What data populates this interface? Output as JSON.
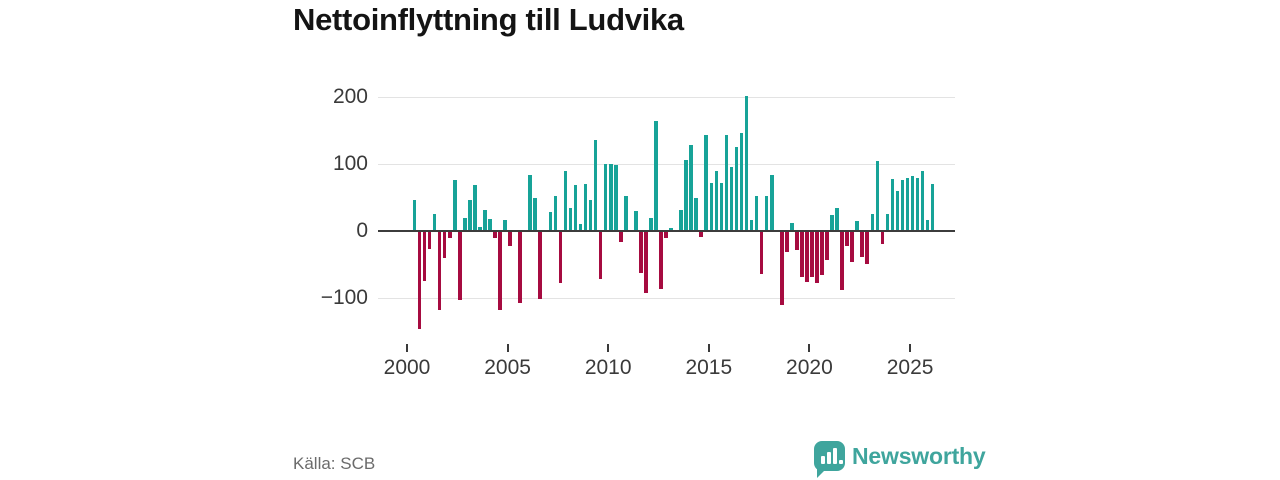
{
  "title": "Nettoinflyttning till Ludvika",
  "source": "Källa: SCB",
  "branding": {
    "name": "Newsworthy",
    "icon": "newsworthy-speech-bubble-barchart-icon"
  },
  "colors": {
    "positive_bar": "#17a398",
    "negative_bar": "#a60b40",
    "zero_axis": "#3c3c3c",
    "gridline": "#e3e3e3",
    "axis_text": "#3a3a3a",
    "title_text": "#141414",
    "source_text": "#6b6b6b",
    "brand_teal": "#3fa59d"
  },
  "chart_data": {
    "type": "bar",
    "title": "Nettoinflyttning till Ludvika",
    "xlabel": "",
    "ylabel": "",
    "frequency": "quarterly",
    "start": "2000-Q2",
    "end": "2026-Q1",
    "grid": "horizontal",
    "ylim": [
      -160,
      215
    ],
    "y_ticks": [
      {
        "value": 200,
        "label": "200"
      },
      {
        "value": 100,
        "label": "100"
      },
      {
        "value": 0,
        "label": "0"
      },
      {
        "value": -100,
        "label": "−100"
      }
    ],
    "x_ticks": [
      "2000",
      "2005",
      "2010",
      "2015",
      "2020",
      "2025"
    ],
    "values": [
      46,
      -146,
      -75,
      -27,
      26,
      -118,
      -40,
      -11,
      76,
      -103,
      19,
      46,
      68,
      6,
      32,
      18,
      -10,
      -118,
      16,
      -23,
      0,
      -107,
      0,
      84,
      50,
      -102,
      0,
      28,
      52,
      -77,
      89,
      35,
      68,
      10,
      70,
      47,
      136,
      -72,
      100,
      100,
      98,
      -16,
      53,
      0,
      30,
      -63,
      -93,
      19,
      164,
      -86,
      -10,
      4,
      0,
      31,
      106,
      128,
      49,
      -9,
      144,
      71,
      90,
      71,
      143,
      95,
      125,
      146,
      202,
      16,
      53,
      -64,
      53,
      83,
      0,
      -110,
      -32,
      12,
      -28,
      -68,
      -76,
      -68,
      -77,
      -66,
      -43,
      24,
      34,
      -88,
      -23,
      -46,
      15,
      -39,
      -49,
      26,
      105,
      -19,
      26,
      77,
      60,
      76,
      79,
      82,
      79,
      90,
      16,
      70
    ]
  }
}
